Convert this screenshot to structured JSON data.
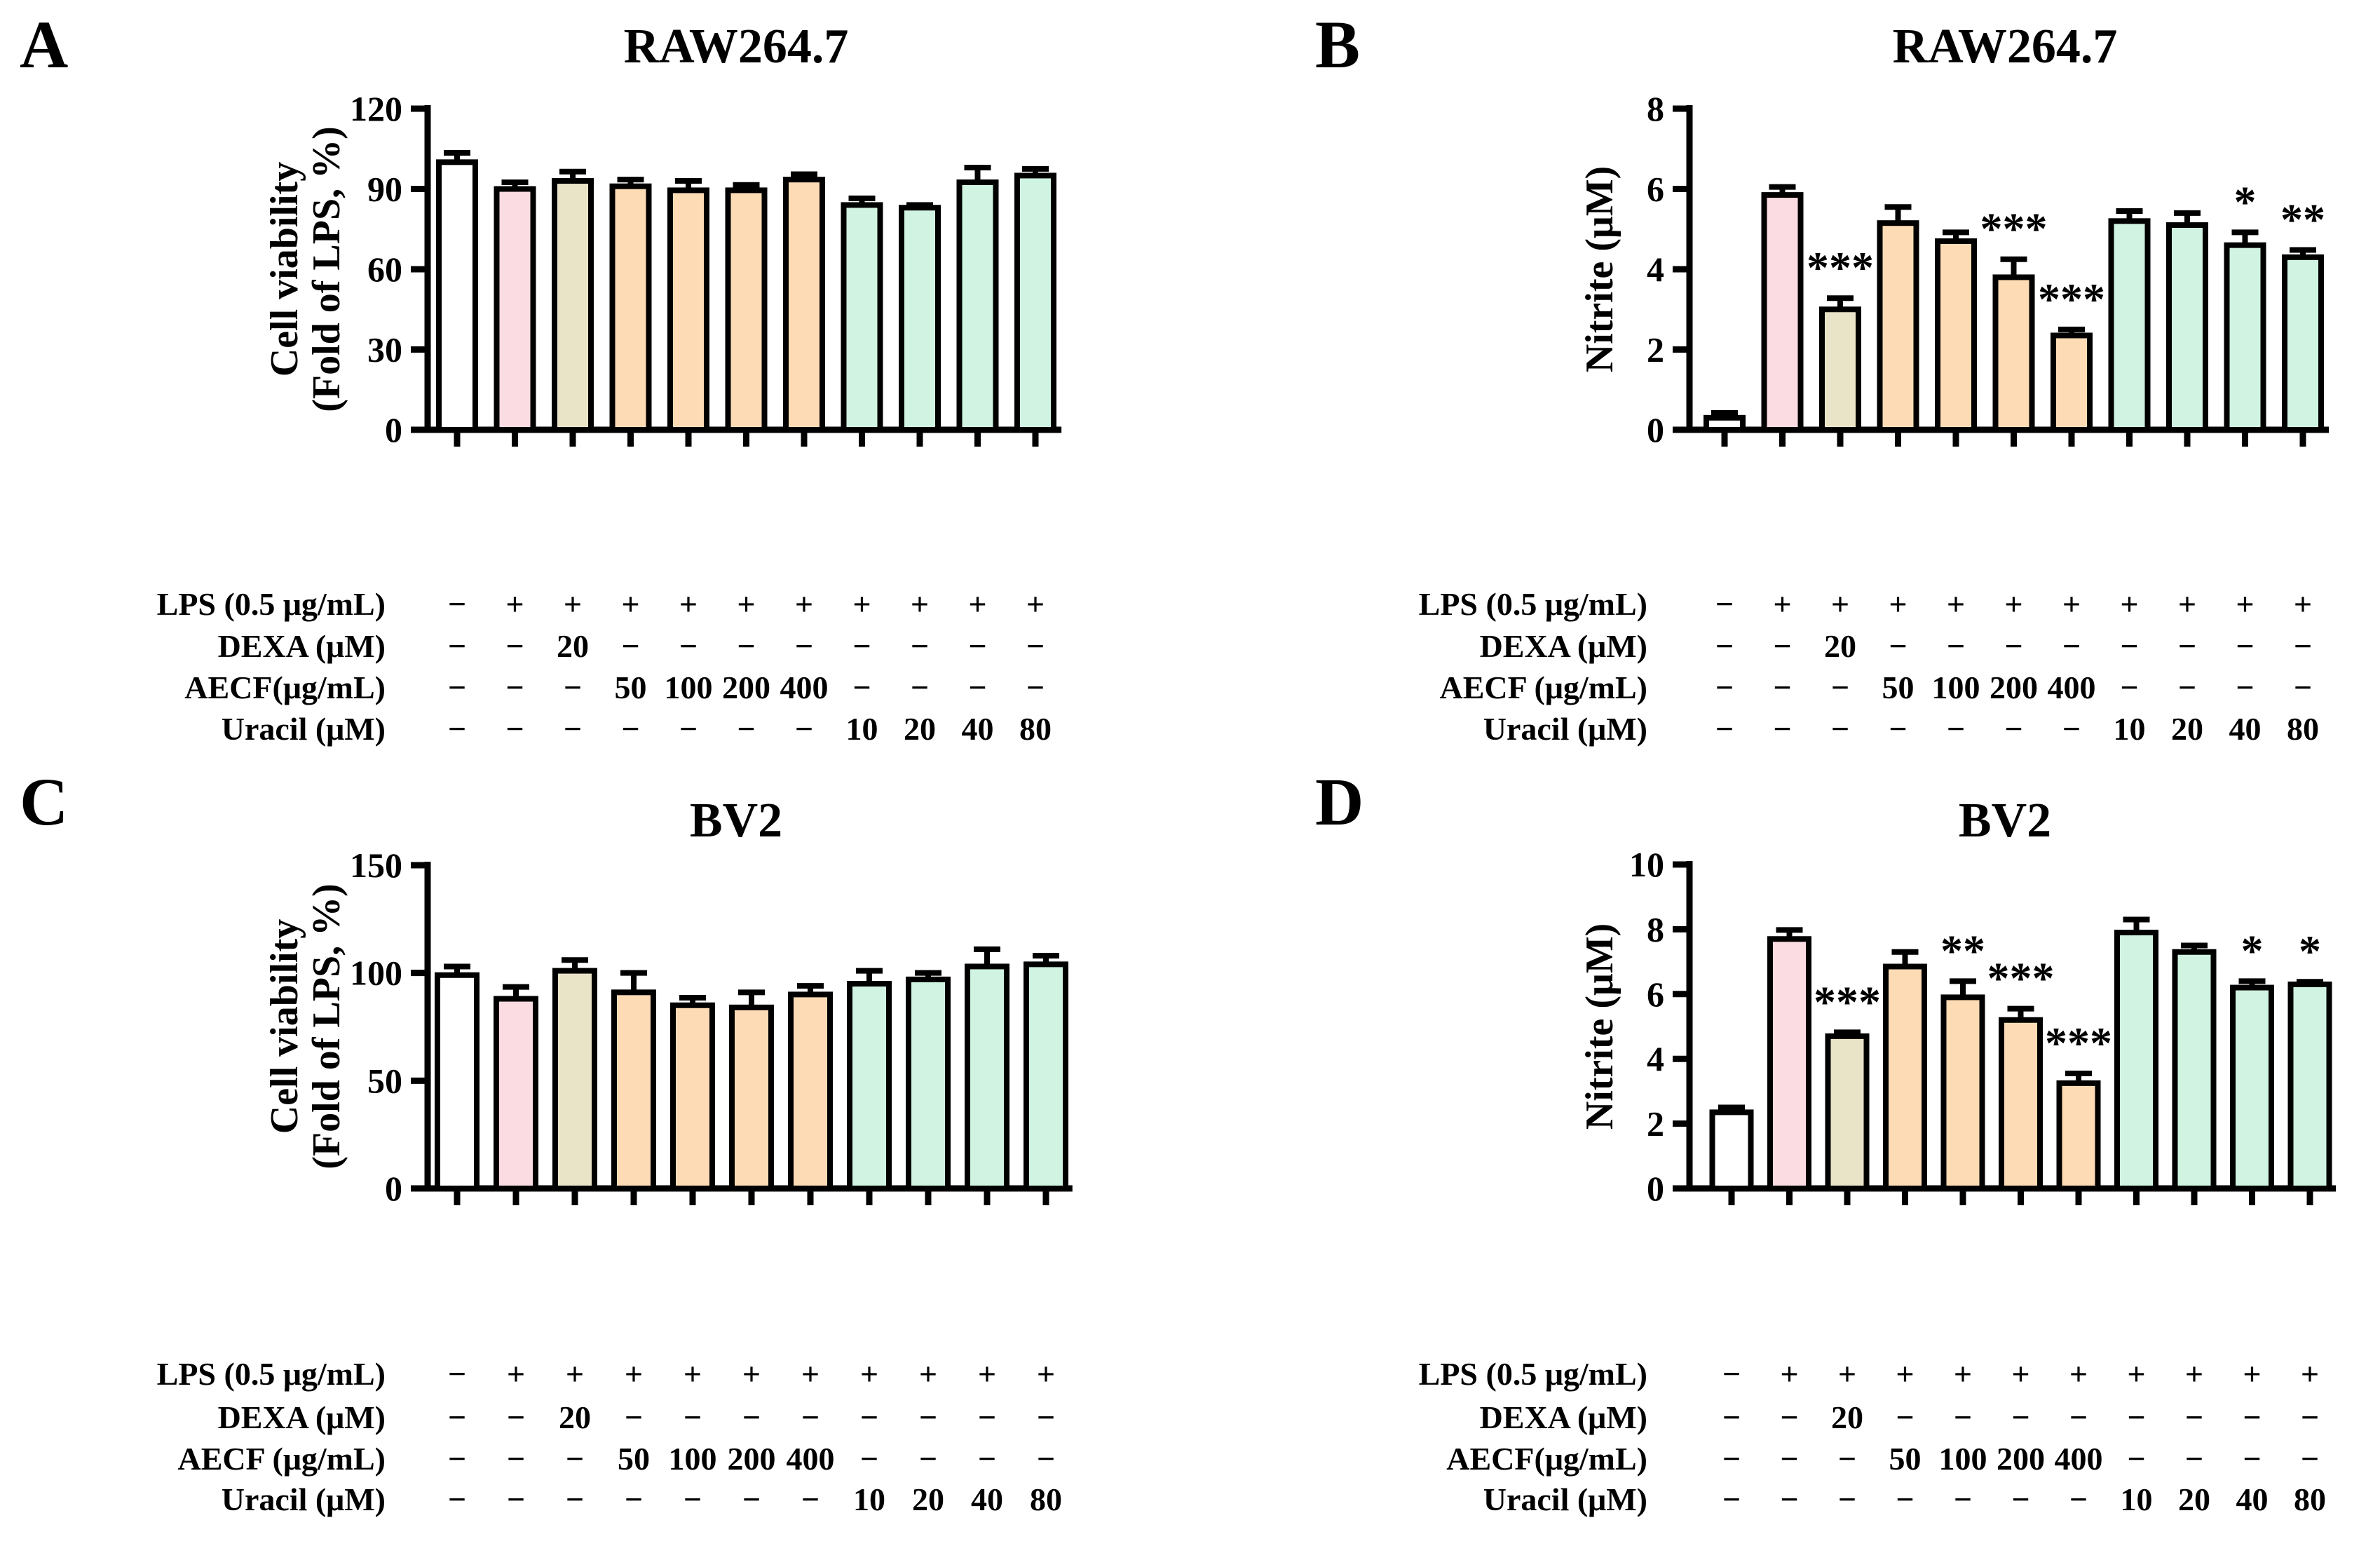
{
  "background_color": "#FFFFFF",
  "axis_color": "#000000",
  "palette": {
    "control": "#FFFFFF",
    "lps": "#FBDCE2",
    "dexa": "#E9E4C8",
    "aecf": "#FDDCB5",
    "uracil": "#D0F4E1",
    "bar_border": "#000000"
  },
  "chart_data": [
    {
      "type": "bar",
      "panel_letter": "A",
      "title": "RAW264.7",
      "ylabel_lines": [
        "Cell viability",
        "(Fold of  LPS, %)"
      ],
      "ylim": [
        0,
        120
      ],
      "yticks": [
        0,
        30,
        60,
        90,
        120
      ],
      "grid": false,
      "legend": "none",
      "values": [
        100,
        90,
        93,
        91,
        89.5,
        89.5,
        93.5,
        84,
        83,
        92.5,
        95
      ],
      "errors": [
        3.5,
        2.5,
        3.5,
        2.5,
        3.5,
        2,
        2,
        2.5,
        1,
        5.5,
        2.5
      ],
      "significance": [
        "",
        "",
        "",
        "",
        "",
        "",
        "",
        "",
        "",
        "",
        ""
      ],
      "bar_fill_colors": [
        "#FFFFFF",
        "#FBDCE2",
        "#E9E4C8",
        "#FDDCB5",
        "#FDDCB5",
        "#FDDCB5",
        "#FDDCB5",
        "#D0F4E1",
        "#D0F4E1",
        "#D0F4E1",
        "#D0F4E1"
      ],
      "treatment_rows": [
        {
          "label": "LPS (0.5 μg/mL)",
          "values": [
            "−",
            "+",
            "+",
            "+",
            "+",
            "+",
            "+",
            "+",
            "+",
            "+",
            "+"
          ]
        },
        {
          "label": "DEXA (μM)",
          "values": [
            "−",
            "−",
            "20",
            "−",
            "−",
            "−",
            "−",
            "−",
            "−",
            "−",
            "−"
          ]
        },
        {
          "label": "AECF(μg/mL)",
          "values": [
            "−",
            "−",
            "−",
            "50",
            "100",
            "200",
            "400",
            "−",
            "−",
            "−",
            "−"
          ]
        },
        {
          "label": "Uracil (μM)",
          "values": [
            "−",
            "−",
            "−",
            "−",
            "−",
            "−",
            "−",
            "10",
            "20",
            "40",
            "80"
          ]
        }
      ]
    },
    {
      "type": "bar",
      "panel_letter": "B",
      "title": "RAW264.7",
      "ylabel_lines": [
        "Nitrite (μM)"
      ],
      "ylim": [
        0,
        8
      ],
      "yticks": [
        0,
        2,
        4,
        6,
        8
      ],
      "grid": false,
      "legend": "none",
      "values": [
        0.3,
        5.85,
        3.0,
        5.15,
        4.7,
        3.8,
        2.35,
        5.2,
        5.1,
        4.6,
        4.3
      ],
      "errors": [
        0.12,
        0.2,
        0.28,
        0.4,
        0.22,
        0.45,
        0.15,
        0.25,
        0.3,
        0.32,
        0.18
      ],
      "significance": [
        "",
        "",
        "***",
        "",
        "",
        "***",
        "***",
        "",
        "",
        "*",
        "**"
      ],
      "bar_fill_colors": [
        "#FFFFFF",
        "#FBDCE2",
        "#E9E4C8",
        "#FDDCB5",
        "#FDDCB5",
        "#FDDCB5",
        "#FDDCB5",
        "#D0F4E1",
        "#D0F4E1",
        "#D0F4E1",
        "#D0F4E1"
      ],
      "treatment_rows": [
        {
          "label": "LPS (0.5 μg/mL)",
          "values": [
            "−",
            "+",
            "+",
            "+",
            "+",
            "+",
            "+",
            "+",
            "+",
            "+",
            "+"
          ]
        },
        {
          "label": "DEXA (μM)",
          "values": [
            "−",
            "−",
            "20",
            "−",
            "−",
            "−",
            "−",
            "−",
            "−",
            "−",
            "−"
          ]
        },
        {
          "label": "AECF (μg/mL)",
          "values": [
            "−",
            "−",
            "−",
            "50",
            "100",
            "200",
            "400",
            "−",
            "−",
            "−",
            "−"
          ]
        },
        {
          "label": "Uracil (μM)",
          "values": [
            "−",
            "−",
            "−",
            "−",
            "−",
            "−",
            "−",
            "10",
            "20",
            "40",
            "80"
          ]
        }
      ]
    },
    {
      "type": "bar",
      "panel_letter": "C",
      "title": "BV2",
      "ylabel_lines": [
        "Cell viability",
        "(Fold of  LPS, %)"
      ],
      "ylim": [
        0,
        150
      ],
      "yticks": [
        0,
        50,
        100,
        150
      ],
      "grid": false,
      "legend": "none",
      "values": [
        99,
        88,
        101,
        91,
        85,
        84,
        90,
        95,
        97,
        103,
        104
      ],
      "errors": [
        4,
        5.5,
        5,
        9,
        3.5,
        7,
        4,
        6,
        3,
        8,
        4
      ],
      "significance": [
        "",
        "",
        "",
        "",
        "",
        "",
        "",
        "",
        "",
        "",
        ""
      ],
      "bar_fill_colors": [
        "#FFFFFF",
        "#FBDCE2",
        "#E9E4C8",
        "#FDDCB5",
        "#FDDCB5",
        "#FDDCB5",
        "#FDDCB5",
        "#D0F4E1",
        "#D0F4E1",
        "#D0F4E1",
        "#D0F4E1"
      ],
      "treatment_rows": [
        {
          "label": "LPS (0.5 μg/mL)",
          "values": [
            "−",
            "+",
            "+",
            "+",
            "+",
            "+",
            "+",
            "+",
            "+",
            "+",
            "+"
          ]
        },
        {
          "label": "DEXA (μM)",
          "values": [
            "−",
            "−",
            "20",
            "−",
            "−",
            "−",
            "−",
            "−",
            "−",
            "−",
            "−"
          ]
        },
        {
          "label": "AECF (μg/mL)",
          "values": [
            "−",
            "−",
            "−",
            "50",
            "100",
            "200",
            "400",
            "−",
            "−",
            "−",
            "−"
          ]
        },
        {
          "label": "Uracil (μM)",
          "values": [
            "−",
            "−",
            "−",
            "−",
            "−",
            "−",
            "−",
            "10",
            "20",
            "40",
            "80"
          ]
        }
      ]
    },
    {
      "type": "bar",
      "panel_letter": "D",
      "title": "BV2",
      "ylabel_lines": [
        "Nitrite (μM)"
      ],
      "ylim": [
        0,
        10
      ],
      "yticks": [
        0,
        2,
        4,
        6,
        8,
        10
      ],
      "grid": false,
      "legend": "none",
      "values": [
        2.35,
        7.7,
        4.7,
        6.85,
        5.9,
        5.2,
        3.25,
        7.9,
        7.3,
        6.2,
        6.3
      ],
      "errors": [
        0.15,
        0.28,
        0.12,
        0.45,
        0.5,
        0.35,
        0.3,
        0.4,
        0.2,
        0.2,
        0.08
      ],
      "significance": [
        "",
        "",
        "***",
        "",
        "**",
        "***",
        "***",
        "",
        "",
        "*",
        "*"
      ],
      "bar_fill_colors": [
        "#FFFFFF",
        "#FBDCE2",
        "#E9E4C8",
        "#FDDCB5",
        "#FDDCB5",
        "#FDDCB5",
        "#FDDCB5",
        "#D0F4E1",
        "#D0F4E1",
        "#D0F4E1",
        "#D0F4E1"
      ],
      "treatment_rows": [
        {
          "label": "LPS (0.5 μg/mL)",
          "values": [
            "−",
            "+",
            "+",
            "+",
            "+",
            "+",
            "+",
            "+",
            "+",
            "+",
            "+"
          ]
        },
        {
          "label": "DEXA (μM)",
          "values": [
            "−",
            "−",
            "20",
            "−",
            "−",
            "−",
            "−",
            "−",
            "−",
            "−",
            "−"
          ]
        },
        {
          "label": "AECF(μg/mL)",
          "values": [
            "−",
            "−",
            "−",
            "50",
            "100",
            "200",
            "400",
            "−",
            "−",
            "−",
            "−"
          ]
        },
        {
          "label": "Uracil (μM)",
          "values": [
            "−",
            "−",
            "−",
            "−",
            "−",
            "−",
            "−",
            "10",
            "20",
            "40",
            "80"
          ]
        }
      ]
    }
  ]
}
